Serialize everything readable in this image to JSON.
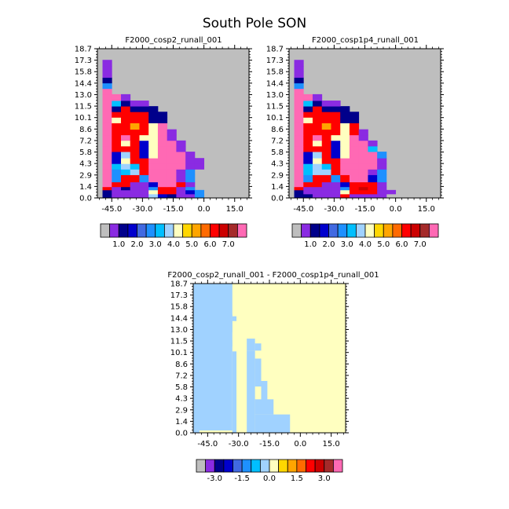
{
  "page": {
    "title": "South Pole SON"
  },
  "colors": {
    "background": "#ffffff",
    "missing": "#bebebe",
    "axis": "#000000"
  },
  "palettes": {
    "abs": [
      "#bebebe",
      "#8a2be2",
      "#00008b",
      "#0000cd",
      "#4169e1",
      "#1e90ff",
      "#00bfff",
      "#a0d2ff",
      "#ffffc0",
      "#ffd700",
      "#ffa500",
      "#ff6a00",
      "#ff0000",
      "#cc0000",
      "#a52a2a",
      "#ff69b4"
    ],
    "diff": [
      "#bebebe",
      "#8a2be2",
      "#00008b",
      "#0000cd",
      "#4169e1",
      "#1e90ff",
      "#00bfff",
      "#a0d2ff",
      "#ffffc0",
      "#ffd700",
      "#ffa500",
      "#ff6a00",
      "#ff0000",
      "#cc0000",
      "#a52a2a",
      "#ff69b4"
    ]
  },
  "chart_data": [
    {
      "type": "heatmap",
      "panel": "top-left",
      "title": "F2000_cosp2_runall_001",
      "xticks": [
        "-45.0",
        "-30.0",
        "-15.0",
        "0.0",
        "15.0"
      ],
      "xtick_values": [
        -45,
        -30,
        -15,
        0,
        15
      ],
      "xlim": [
        -52,
        22
      ],
      "yticks": [
        "0.0",
        "1.4",
        "2.9",
        "4.3",
        "5.8",
        "7.2",
        "8.6",
        "10.1",
        "11.5",
        "13.0",
        "14.4",
        "15.8",
        "17.3",
        "18.7"
      ],
      "ylim": [
        0,
        18.7
      ],
      "colorbar_labels": [
        "1.0",
        "2.0",
        "3.0",
        "4.0",
        "5.0",
        "6.0",
        "7.0"
      ],
      "x_edges": [
        -49.5,
        -45,
        -40.5,
        -36,
        -31.5,
        -27,
        -22.5,
        -18,
        -13.5,
        -9,
        -4.5,
        0
      ],
      "y_edges": [
        0,
        0.5,
        1.0,
        1.4,
        2.0,
        2.9,
        3.6,
        4.3,
        5.0,
        5.8,
        6.5,
        7.2,
        7.9,
        8.6,
        9.4,
        10.1,
        10.8,
        11.5,
        12.2,
        13.0,
        13.7,
        14.4,
        15.1,
        15.8,
        16.5,
        17.3
      ],
      "grid": [
        [
          2,
          1,
          1,
          1,
          1,
          7,
          3,
          2,
          1,
          1,
          5
        ],
        [
          2,
          1,
          1,
          1,
          1,
          8,
          12,
          12,
          1,
          3,
          5
        ],
        [
          12,
          1,
          2,
          1,
          1,
          5,
          12,
          12,
          1,
          5,
          0
        ],
        [
          15,
          12,
          12,
          1,
          1,
          3,
          15,
          15,
          12,
          1,
          0
        ],
        [
          15,
          5,
          12,
          12,
          5,
          15,
          15,
          15,
          1,
          5,
          0
        ],
        [
          15,
          5,
          6,
          7,
          12,
          15,
          15,
          15,
          1,
          5,
          0
        ],
        [
          15,
          6,
          7,
          6,
          12,
          15,
          15,
          15,
          15,
          1,
          1
        ],
        [
          15,
          3,
          8,
          12,
          12,
          15,
          15,
          15,
          15,
          1,
          1
        ],
        [
          15,
          3,
          7,
          12,
          3,
          8,
          15,
          15,
          15,
          1,
          0
        ],
        [
          15,
          12,
          12,
          12,
          3,
          8,
          15,
          15,
          1,
          0,
          0
        ],
        [
          15,
          12,
          8,
          12,
          3,
          8,
          15,
          15,
          1,
          0,
          0
        ],
        [
          15,
          12,
          15,
          12,
          8,
          8,
          15,
          1,
          0,
          0,
          0
        ],
        [
          15,
          12,
          12,
          12,
          12,
          8,
          15,
          1,
          0,
          0,
          0
        ],
        [
          15,
          12,
          12,
          10,
          12,
          8,
          15,
          0,
          0,
          0,
          0
        ],
        [
          15,
          8,
          12,
          12,
          12,
          2,
          2,
          0,
          0,
          0,
          0
        ],
        [
          15,
          12,
          12,
          12,
          12,
          2,
          2,
          0,
          0,
          0,
          0
        ],
        [
          15,
          2,
          12,
          2,
          2,
          2,
          0,
          0,
          0,
          0,
          0
        ],
        [
          15,
          6,
          2,
          1,
          1,
          0,
          0,
          0,
          0,
          0,
          0
        ],
        [
          15,
          15,
          1,
          0,
          0,
          0,
          0,
          0,
          0,
          0,
          0
        ],
        [
          15,
          0,
          0,
          0,
          0,
          0,
          0,
          0,
          0,
          0,
          0
        ],
        [
          5,
          0,
          0,
          0,
          0,
          0,
          0,
          0,
          0,
          0,
          0
        ],
        [
          2,
          0,
          0,
          0,
          0,
          0,
          0,
          0,
          0,
          0,
          0
        ],
        [
          1,
          0,
          0,
          0,
          0,
          0,
          0,
          0,
          0,
          0,
          0
        ],
        [
          1,
          0,
          0,
          0,
          0,
          0,
          0,
          0,
          0,
          0,
          0
        ],
        [
          1,
          0,
          0,
          0,
          0,
          0,
          0,
          0,
          0,
          0,
          0
        ]
      ]
    },
    {
      "type": "heatmap",
      "panel": "top-right",
      "title": "F2000_cosp1p4_runall_001",
      "xticks": [
        "-45.0",
        "-30.0",
        "-15.0",
        "0.0",
        "15.0"
      ],
      "xtick_values": [
        -45,
        -30,
        -15,
        0,
        15
      ],
      "xlim": [
        -52,
        22
      ],
      "yticks": [
        "0.0",
        "1.4",
        "2.9",
        "4.3",
        "5.8",
        "7.2",
        "8.6",
        "10.1",
        "11.5",
        "13.0",
        "14.4",
        "15.8",
        "17.3",
        "18.7"
      ],
      "ylim": [
        0,
        18.7
      ],
      "colorbar_labels": [
        "1.0",
        "2.0",
        "3.0",
        "4.0",
        "5.0",
        "6.0",
        "7.0"
      ],
      "x_edges": [
        -49.5,
        -45,
        -40.5,
        -36,
        -31.5,
        -27,
        -22.5,
        -18,
        -13.5,
        -9,
        -4.5,
        0
      ],
      "y_edges": [
        0,
        0.5,
        1.0,
        1.4,
        2.0,
        2.9,
        3.6,
        4.3,
        5.0,
        5.8,
        6.5,
        7.2,
        7.9,
        8.6,
        9.4,
        10.1,
        10.8,
        11.5,
        12.2,
        13.0,
        13.7,
        14.4,
        15.1,
        15.8,
        16.5,
        17.3
      ],
      "grid": [
        [
          2,
          2,
          1,
          1,
          1,
          12,
          1,
          1,
          1,
          1,
          0
        ],
        [
          2,
          1,
          1,
          1,
          1,
          8,
          12,
          12,
          12,
          1,
          1
        ],
        [
          12,
          1,
          1,
          1,
          1,
          5,
          12,
          13,
          12,
          1,
          0
        ],
        [
          15,
          12,
          12,
          1,
          1,
          3,
          12,
          12,
          12,
          1,
          0
        ],
        [
          15,
          5,
          12,
          12,
          5,
          12,
          15,
          15,
          3,
          5,
          0
        ],
        [
          15,
          6,
          7,
          7,
          12,
          15,
          15,
          15,
          1,
          5,
          0
        ],
        [
          15,
          6,
          7,
          6,
          12,
          15,
          15,
          15,
          15,
          1,
          0
        ],
        [
          15,
          3,
          8,
          12,
          12,
          15,
          15,
          15,
          15,
          1,
          0
        ],
        [
          15,
          3,
          7,
          12,
          3,
          8,
          15,
          15,
          15,
          5,
          0
        ],
        [
          15,
          12,
          12,
          12,
          3,
          8,
          15,
          15,
          6,
          0,
          0
        ],
        [
          15,
          12,
          8,
          12,
          3,
          8,
          15,
          15,
          1,
          0,
          0
        ],
        [
          15,
          12,
          15,
          12,
          8,
          8,
          15,
          1,
          0,
          0,
          0
        ],
        [
          15,
          12,
          12,
          12,
          12,
          8,
          12,
          1,
          0,
          0,
          0
        ],
        [
          15,
          12,
          12,
          10,
          12,
          8,
          12,
          0,
          0,
          0,
          0
        ],
        [
          15,
          8,
          12,
          12,
          12,
          2,
          2,
          0,
          0,
          0,
          0
        ],
        [
          15,
          12,
          12,
          12,
          12,
          2,
          2,
          0,
          0,
          0,
          0
        ],
        [
          15,
          2,
          12,
          2,
          2,
          2,
          0,
          0,
          0,
          0,
          0
        ],
        [
          15,
          6,
          2,
          1,
          1,
          0,
          0,
          0,
          0,
          0,
          0
        ],
        [
          15,
          15,
          1,
          0,
          0,
          0,
          0,
          0,
          0,
          0,
          0
        ],
        [
          15,
          0,
          0,
          0,
          0,
          0,
          0,
          0,
          0,
          0,
          0
        ],
        [
          5,
          0,
          0,
          0,
          0,
          0,
          0,
          0,
          0,
          0,
          0
        ],
        [
          2,
          0,
          0,
          0,
          0,
          0,
          0,
          0,
          0,
          0,
          0
        ],
        [
          1,
          0,
          0,
          0,
          0,
          0,
          0,
          0,
          0,
          0,
          0
        ],
        [
          1,
          0,
          0,
          0,
          0,
          0,
          0,
          0,
          0,
          0,
          0
        ],
        [
          1,
          0,
          0,
          0,
          0,
          0,
          0,
          0,
          0,
          0,
          0
        ]
      ]
    },
    {
      "type": "heatmap",
      "panel": "bottom",
      "title": "F2000_cosp2_runall_001 - F2000_cosp1p4_runall_001",
      "xticks": [
        "-45.0",
        "-30.0",
        "-15.0",
        "0.0",
        "15.0"
      ],
      "xtick_values": [
        -45,
        -30,
        -15,
        0,
        15
      ],
      "xlim": [
        -52,
        22
      ],
      "yticks": [
        "0.0",
        "1.4",
        "2.9",
        "4.3",
        "5.8",
        "7.2",
        "8.6",
        "10.1",
        "11.5",
        "13.0",
        "14.4",
        "15.8",
        "17.3",
        "18.7"
      ],
      "ylim": [
        0,
        18.7
      ],
      "colorbar_labels": [
        "-3.0",
        "-1.5",
        "0.0",
        "1.5",
        "3.0"
      ],
      "fill_value": 8,
      "regions": [
        {
          "x0": -52,
          "x1": -33,
          "y0": 0.3,
          "y1": 18.7,
          "v": 7
        },
        {
          "x0": -52,
          "x1": -49,
          "y0": 0.0,
          "y1": 0.3,
          "v": 7
        },
        {
          "x0": -33,
          "x1": -31,
          "y0": 0.0,
          "y1": 10.2,
          "v": 7
        },
        {
          "x0": -33,
          "x1": -36,
          "y0": 10.8,
          "y1": 11.6,
          "v": 7
        },
        {
          "x0": -33,
          "x1": -36,
          "y0": 12.6,
          "y1": 14.8,
          "v": 7
        },
        {
          "x0": -33,
          "x1": -31,
          "y0": 14.0,
          "y1": 14.6,
          "v": 7
        },
        {
          "x0": -26,
          "x1": -22,
          "y0": 0.0,
          "y1": 10.3,
          "v": 7
        },
        {
          "x0": -26,
          "x1": -22,
          "y0": 10.3,
          "y1": 11.8,
          "v": 7
        },
        {
          "x0": -22,
          "x1": -19,
          "y0": 10.3,
          "y1": 11.2,
          "v": 7
        },
        {
          "x0": -22,
          "x1": -19,
          "y0": 5.8,
          "y1": 9.3,
          "v": 7
        },
        {
          "x0": -19,
          "x1": -16,
          "y0": 4.0,
          "y1": 6.5,
          "v": 7
        },
        {
          "x0": -22,
          "x1": -13,
          "y0": 2.3,
          "y1": 4.2,
          "v": 7
        },
        {
          "x0": -22,
          "x1": -5,
          "y0": 0.0,
          "y1": 2.3,
          "v": 7
        }
      ]
    }
  ]
}
